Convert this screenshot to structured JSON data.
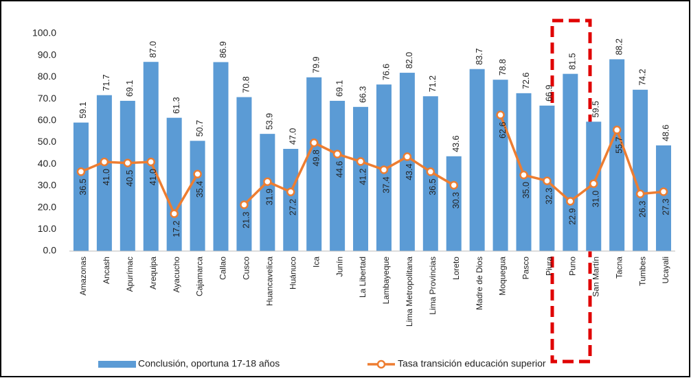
{
  "chart_data": {
    "type": "bar",
    "categories": [
      "Amazonas",
      "Ancash",
      "Apurímac",
      "Arequipa",
      "Ayacucho",
      "Cajamarca",
      "Callao",
      "Cusco",
      "Huancavelica",
      "Huánuco",
      "Ica",
      "Junín",
      "La Libertad",
      "Lambayeque",
      "Lima Metropolitana",
      "Lima Provincias",
      "Loreto",
      "Madre de Dios",
      "Moquegua",
      "Pasco",
      "Piura",
      "Puno",
      "San Martín",
      "Tacna",
      "Tumbes",
      "Ucayali"
    ],
    "series": [
      {
        "name": "Conclusión, oportuna 17-18 años",
        "type": "bar",
        "color": "#5b9bd5",
        "values": [
          59.1,
          71.7,
          69.1,
          87.0,
          61.3,
          50.7,
          86.9,
          70.8,
          53.9,
          47.0,
          79.9,
          69.1,
          66.3,
          76.6,
          82.0,
          71.2,
          43.6,
          83.7,
          78.8,
          72.6,
          66.9,
          81.5,
          59.5,
          88.2,
          74.2,
          48.6
        ],
        "value_labels": [
          "59.1",
          "71.7",
          "69.1",
          "87.0",
          "61.3",
          "50.7",
          "86.9",
          "70.8",
          "53.9",
          "47.0",
          "79.9",
          "69.1",
          "66.3",
          "76.6",
          "82.0",
          "71.2",
          "43.6",
          "83.7",
          "78.8",
          "72.6",
          "66.9",
          "81.5",
          "59.5",
          "88.2",
          "74.2",
          "48.6"
        ]
      },
      {
        "name": "Tasa transición educación superior",
        "type": "line",
        "color": "#ed7d31",
        "values": [
          36.5,
          41.0,
          40.5,
          41.0,
          17.2,
          35.4,
          null,
          21.3,
          31.9,
          27.2,
          49.8,
          44.6,
          41.2,
          37.4,
          43.4,
          36.5,
          30.3,
          null,
          62.6,
          35.0,
          32.3,
          22.9,
          31.0,
          55.7,
          26.3,
          27.3
        ],
        "value_labels": [
          "36.5",
          "41.0",
          "40.5",
          "41.0",
          "17.2",
          "35.4",
          null,
          "21.3",
          "31.9",
          "27.2",
          "49.8",
          "44.6",
          "41.2",
          "37.4",
          "43.4",
          "36.5",
          "30.3",
          null,
          "62.6",
          "35.0",
          "32.3",
          "22.9",
          "31.0",
          "55.7",
          "26.3",
          "27.3"
        ]
      }
    ],
    "ylim": [
      0,
      100
    ],
    "yticks": [
      {
        "value": 0,
        "label": "0.0"
      },
      {
        "value": 10,
        "label": "10.0"
      },
      {
        "value": 20,
        "label": "20.0"
      },
      {
        "value": 30,
        "label": "30.0"
      },
      {
        "value": 40,
        "label": "40.0"
      },
      {
        "value": 50,
        "label": "50.0"
      },
      {
        "value": 60,
        "label": "60.0"
      },
      {
        "value": 70,
        "label": "70.0"
      },
      {
        "value": 80,
        "label": "80.0"
      },
      {
        "value": 90,
        "label": "90.0"
      },
      {
        "value": 100,
        "label": "100.0"
      }
    ],
    "grid": false,
    "legend": "bottom"
  }
}
